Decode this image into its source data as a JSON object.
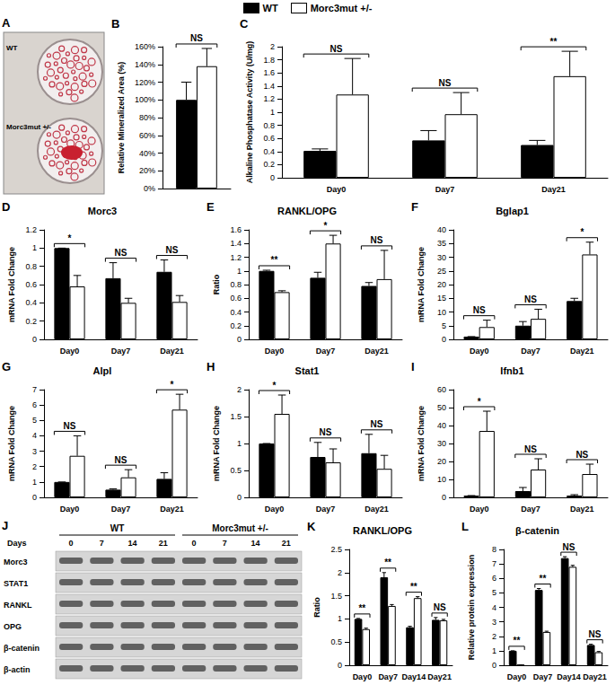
{
  "legend": [
    {
      "name": "WT",
      "color": "#000000"
    },
    {
      "name": "Morc3mut +/-",
      "color": "#ffffff"
    }
  ],
  "image": {
    "panel": "A",
    "labels": [
      "WT",
      "Morc3mut +/-"
    ]
  },
  "blot": {
    "panel": "J",
    "days_label": "Days",
    "groups": [
      {
        "label": "WT",
        "days": [
          "0",
          "7",
          "14",
          "21"
        ]
      },
      {
        "label": "Morc3mut +/-",
        "days": [
          "0",
          "7",
          "14",
          "21"
        ]
      }
    ],
    "rows": [
      "Morc3",
      "STAT1",
      "RANKL",
      "OPG",
      "β-catenin",
      "β-actin"
    ]
  },
  "chart_data": [
    {
      "type": "bar",
      "panel": "B",
      "y_label": "Relative Mineralized Area (%)",
      "tick_labels": "y",
      "categories": [
        null
      ],
      "series": [
        {
          "name": "WT",
          "color": "#000000",
          "values": [
            100
          ],
          "errors": [
            20
          ]
        },
        {
          "name": "Morc3mut +/-",
          "color": "#ffffff",
          "values": [
            138
          ],
          "errors": [
            20
          ]
        }
      ],
      "annotations": [
        "NS"
      ],
      "ylim": [
        0,
        160
      ],
      "yticks": [
        {
          "value": 0,
          "label": "0%"
        },
        {
          "value": 20,
          "label": "20%"
        },
        {
          "value": 40,
          "label": "40%"
        },
        {
          "value": 60,
          "label": "60%"
        },
        {
          "value": 80,
          "label": "80%"
        },
        {
          "value": 100,
          "label": "100%"
        },
        {
          "value": 120,
          "label": "120%"
        },
        {
          "value": 140,
          "label": "140%"
        },
        {
          "value": 160,
          "label": "160%"
        }
      ]
    },
    {
      "type": "bar",
      "panel": "C",
      "y_label": "Alkaline Phosphatase Activity (U/mg)",
      "categories": [
        "Day0",
        "Day7",
        "Day21"
      ],
      "series": [
        {
          "name": "WT",
          "color": "#000000",
          "values": [
            0.41,
            0.57,
            0.5
          ],
          "errors": [
            0.03,
            0.15,
            0.07
          ]
        },
        {
          "name": "Morc3mut +/-",
          "color": "#ffffff",
          "values": [
            1.27,
            0.97,
            1.55
          ],
          "errors": [
            0.55,
            0.33,
            0.38
          ]
        }
      ],
      "annotations": [
        "NS",
        "NS",
        "**"
      ],
      "ylim": [
        0,
        2
      ],
      "yticks": [
        0,
        0.2,
        0.4,
        0.6,
        0.8,
        1,
        1.2,
        1.4,
        1.6,
        1.8,
        2
      ]
    },
    {
      "type": "bar",
      "panel": "D",
      "title": "Morc3",
      "y_label": "mRNA Fold Change",
      "categories": [
        "Day0",
        "Day7",
        "Day21"
      ],
      "series": [
        {
          "name": "WT",
          "color": "#000000",
          "values": [
            1.0,
            0.67,
            0.74
          ],
          "errors": [
            0,
            0.17,
            0.13
          ]
        },
        {
          "name": "Morc3mut +/-",
          "color": "#ffffff",
          "values": [
            0.58,
            0.4,
            0.41
          ],
          "errors": [
            0.12,
            0.05,
            0.07
          ]
        }
      ],
      "annotations": [
        "*",
        "NS",
        "NS"
      ],
      "ylim": [
        0,
        1.2
      ],
      "yticks": [
        0,
        0.2,
        0.4,
        0.6,
        0.8,
        1,
        1.2
      ]
    },
    {
      "type": "bar",
      "panel": "E",
      "title": "RANKL/OPG",
      "y_label": "Ratio",
      "categories": [
        "Day0",
        "Day7",
        "Day21"
      ],
      "series": [
        {
          "name": "WT",
          "color": "#000000",
          "values": [
            1.0,
            0.9,
            0.78
          ],
          "errors": [
            0.01,
            0.08,
            0.05
          ]
        },
        {
          "name": "Morc3mut +/-",
          "color": "#ffffff",
          "values": [
            0.69,
            1.4,
            0.88
          ],
          "errors": [
            0.02,
            0.12,
            0.42
          ]
        }
      ],
      "annotations": [
        "**",
        "*",
        "NS"
      ],
      "ylim": [
        0,
        1.6
      ],
      "yticks": [
        0,
        0.2,
        0.4,
        0.6,
        0.8,
        1,
        1.2,
        1.4,
        1.6
      ]
    },
    {
      "type": "bar",
      "panel": "F",
      "title": "Bglap1",
      "y_label": "mRNA Fold Change",
      "categories": [
        "Day0",
        "Day7",
        "Day21"
      ],
      "series": [
        {
          "name": "WT",
          "color": "#000000",
          "values": [
            1,
            5,
            14
          ],
          "errors": [
            0,
            1.5,
            1
          ]
        },
        {
          "name": "Morc3mut +/-",
          "color": "#ffffff",
          "values": [
            4.5,
            7.5,
            31
          ],
          "errors": [
            2.5,
            3.5,
            4.5
          ]
        }
      ],
      "annotations": [
        "NS",
        "NS",
        "*"
      ],
      "ylim": [
        0,
        40
      ],
      "yticks": [
        0,
        5,
        10,
        15,
        20,
        25,
        30,
        35,
        40
      ]
    },
    {
      "type": "bar",
      "panel": "G",
      "title": "Alpl",
      "y_label": "mRNA Fold Change",
      "categories": [
        "Day0",
        "Day7",
        "Day21"
      ],
      "series": [
        {
          "name": "WT",
          "color": "#000000",
          "values": [
            1,
            0.5,
            1.2
          ],
          "errors": [
            0,
            0.05,
            0.4
          ]
        },
        {
          "name": "Morc3mut +/-",
          "color": "#ffffff",
          "values": [
            2.7,
            1.3,
            5.7
          ],
          "errors": [
            1.3,
            0.5,
            1.0
          ]
        }
      ],
      "annotations": [
        "NS",
        "NS",
        "*"
      ],
      "ylim": [
        0,
        7
      ],
      "yticks": [
        0,
        1,
        2,
        3,
        4,
        5,
        6,
        7
      ]
    },
    {
      "type": "bar",
      "panel": "H",
      "title": "Stat1",
      "y_label": "mRNA Fold Change",
      "categories": [
        "Day0",
        "Day7",
        "Day21"
      ],
      "series": [
        {
          "name": "WT",
          "color": "#000000",
          "values": [
            1.0,
            0.75,
            0.82
          ],
          "errors": [
            0,
            0.27,
            0.35
          ]
        },
        {
          "name": "Morc3mut +/-",
          "color": "#ffffff",
          "values": [
            1.55,
            0.65,
            0.53
          ],
          "errors": [
            0.35,
            0.25,
            0.25
          ]
        }
      ],
      "annotations": [
        "*",
        "NS",
        "NS"
      ],
      "ylim": [
        0,
        2
      ],
      "yticks": [
        0,
        0.5,
        1,
        1.5,
        2
      ]
    },
    {
      "type": "bar",
      "panel": "I",
      "title": "Ifnb1",
      "y_label": "mRNA Fold Change",
      "categories": [
        "Day0",
        "Day7",
        "Day21"
      ],
      "series": [
        {
          "name": "WT",
          "color": "#000000",
          "values": [
            1,
            3.5,
            1
          ],
          "errors": [
            0,
            2,
            0.5
          ]
        },
        {
          "name": "Morc3mut +/-",
          "color": "#ffffff",
          "values": [
            37,
            15.5,
            13
          ],
          "errors": [
            11,
            6,
            5.5
          ]
        }
      ],
      "annotations": [
        "*",
        "NS",
        "NS"
      ],
      "ylim": [
        0,
        60
      ],
      "yticks": [
        0,
        10,
        20,
        30,
        40,
        50,
        60
      ]
    },
    {
      "type": "bar",
      "panel": "K",
      "title": "RANKL/OPG",
      "y_label": "Ratio",
      "categories": [
        "Day0",
        "Day7",
        "Day14",
        "Day21"
      ],
      "series": [
        {
          "name": "WT",
          "color": "#000000",
          "values": [
            1.0,
            1.9,
            0.82,
            0.98
          ],
          "errors": [
            0.01,
            0.1,
            0.02,
            0.05
          ]
        },
        {
          "name": "Morc3mut +/-",
          "color": "#ffffff",
          "values": [
            0.78,
            1.28,
            1.45,
            0.97
          ],
          "errors": [
            0.02,
            0.03,
            0.03,
            0.02
          ]
        }
      ],
      "annotations": [
        "**",
        "**",
        "**",
        "NS"
      ],
      "ylim": [
        0,
        2.5
      ],
      "yticks": [
        0,
        0.5,
        1,
        1.5,
        2,
        2.5
      ]
    },
    {
      "type": "bar",
      "panel": "L",
      "title": "β-catenin",
      "y_label": "Relative protein expression",
      "categories": [
        "Day0",
        "Day7",
        "Day14",
        "Day21"
      ],
      "series": [
        {
          "name": "WT",
          "color": "#000000",
          "values": [
            1.0,
            5.2,
            7.4,
            1.4
          ],
          "errors": [
            0,
            0.1,
            0.1,
            0.05
          ]
        },
        {
          "name": "Morc3mut +/-",
          "color": "#ffffff",
          "values": [
            0.02,
            2.3,
            6.8,
            0.9
          ],
          "errors": [
            0,
            0.05,
            0.1,
            0.05
          ]
        }
      ],
      "annotations": [
        "**",
        "**",
        "NS",
        "NS"
      ],
      "ylim": [
        0,
        8
      ],
      "yticks": [
        0,
        1,
        2,
        3,
        4,
        5,
        6,
        7,
        8
      ]
    }
  ]
}
